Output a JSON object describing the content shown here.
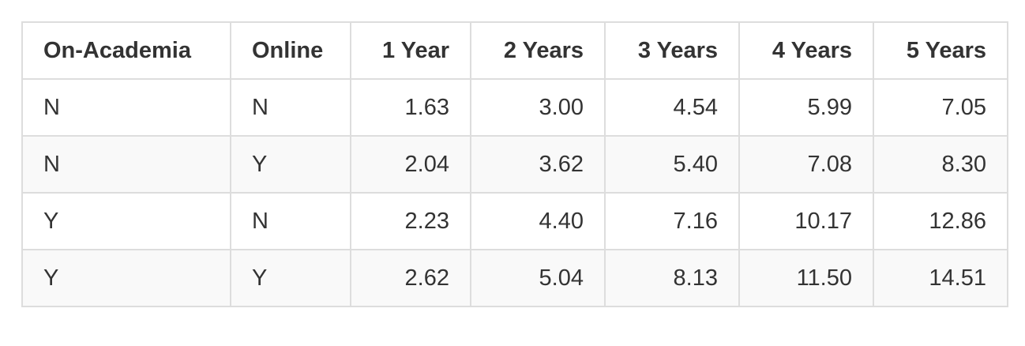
{
  "table": {
    "header": [
      "On-Academia",
      "Online",
      "1 Year",
      "2 Years",
      "3 Years",
      "4 Years",
      "5 Years"
    ],
    "rows": [
      [
        "N",
        "N",
        "1.63",
        "3.00",
        "4.54",
        "5.99",
        "7.05"
      ],
      [
        "N",
        "Y",
        "2.04",
        "3.62",
        "5.40",
        "7.08",
        "8.30"
      ],
      [
        "Y",
        "N",
        "2.23",
        "4.40",
        "7.16",
        "10.17",
        "12.86"
      ],
      [
        "Y",
        "Y",
        "2.62",
        "5.04",
        "8.13",
        "11.50",
        "14.51"
      ]
    ]
  }
}
